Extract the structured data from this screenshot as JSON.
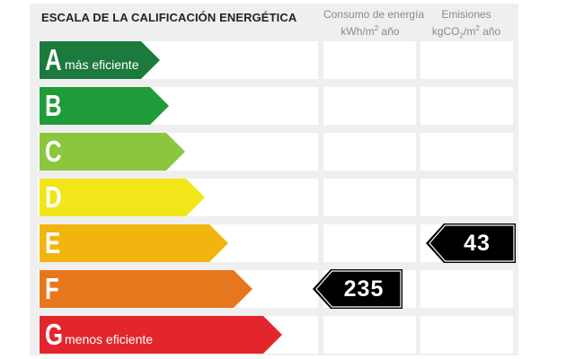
{
  "header": {
    "title": "ESCALA DE LA CALIFICACIÓN ENERGÉTICA",
    "consumo": {
      "line1": "Consumo de energía",
      "unit_a": "kWh/m",
      "unit_sup": "2",
      "unit_b": " año"
    },
    "emisiones": {
      "line1": "Emisiones",
      "unit_a": "kgCO",
      "unit_sub": "2",
      "unit_b": "/m",
      "unit_sup": "2",
      "unit_c": " año"
    }
  },
  "ratings": [
    {
      "letter": "A",
      "label": "más eficiente",
      "color": "#1d7a3d"
    },
    {
      "letter": "B",
      "label": "",
      "color": "#1f9b3a"
    },
    {
      "letter": "C",
      "label": "",
      "color": "#8cc63f"
    },
    {
      "letter": "D",
      "label": "",
      "color": "#f2e61a"
    },
    {
      "letter": "E",
      "label": "",
      "color": "#f2b50f"
    },
    {
      "letter": "F",
      "label": "",
      "color": "#e7771c"
    },
    {
      "letter": "G",
      "label": "menos eficiente",
      "color": "#e3262c"
    }
  ],
  "indicators": {
    "consumo": {
      "value": "235",
      "rating": "F"
    },
    "emisiones": {
      "value": "43",
      "rating": "E"
    }
  }
}
